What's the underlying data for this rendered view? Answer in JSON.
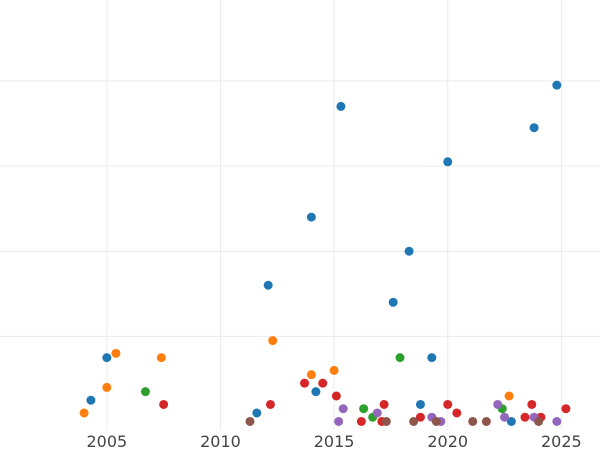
{
  "chart_data": {
    "type": "scatter",
    "title": "",
    "xlabel": "",
    "ylabel": "",
    "xlim": [
      2000.3,
      2026.7
    ],
    "ylim": [
      -1,
      100
    ],
    "x_ticks": [
      2005,
      2010,
      2015,
      2020,
      2025
    ],
    "y_grid_values": [
      21,
      41,
      61,
      81
    ],
    "grid": true,
    "legend": "none",
    "series": [
      {
        "color": "#1f77b4",
        "points": [
          [
            2004.3,
            6
          ],
          [
            2005.0,
            16
          ],
          [
            2011.6,
            3
          ],
          [
            2012.1,
            33
          ],
          [
            2014.0,
            49
          ],
          [
            2014.2,
            8
          ],
          [
            2015.3,
            75
          ],
          [
            2017.6,
            29
          ],
          [
            2018.3,
            41
          ],
          [
            2018.8,
            5
          ],
          [
            2019.3,
            16
          ],
          [
            2020.0,
            62
          ],
          [
            2022.8,
            1
          ],
          [
            2023.8,
            70
          ],
          [
            2024.8,
            80
          ]
        ]
      },
      {
        "color": "#ff7f0e",
        "points": [
          [
            2004.0,
            3
          ],
          [
            2005.0,
            9
          ],
          [
            2005.4,
            17
          ],
          [
            2007.4,
            16
          ],
          [
            2012.3,
            20
          ],
          [
            2014.0,
            12
          ],
          [
            2015.0,
            13
          ],
          [
            2022.7,
            7
          ]
        ]
      },
      {
        "color": "#2ca02c",
        "points": [
          [
            2006.7,
            8
          ],
          [
            2016.3,
            4
          ],
          [
            2016.7,
            2
          ],
          [
            2017.9,
            16
          ],
          [
            2022.4,
            4
          ]
        ]
      },
      {
        "color": "#d62728",
        "points": [
          [
            2007.5,
            5
          ],
          [
            2012.2,
            5
          ],
          [
            2013.7,
            10
          ],
          [
            2014.5,
            10
          ],
          [
            2015.1,
            7
          ],
          [
            2016.2,
            1
          ],
          [
            2017.1,
            1
          ],
          [
            2017.2,
            5
          ],
          [
            2018.8,
            2
          ],
          [
            2020.0,
            5
          ],
          [
            2020.4,
            3
          ],
          [
            2023.4,
            2
          ],
          [
            2023.7,
            5
          ],
          [
            2024.1,
            2
          ],
          [
            2025.2,
            4
          ]
        ]
      },
      {
        "color": "#9467bd",
        "points": [
          [
            2015.2,
            1
          ],
          [
            2015.4,
            4
          ],
          [
            2016.9,
            3
          ],
          [
            2019.3,
            2
          ],
          [
            2019.7,
            1
          ],
          [
            2022.2,
            5
          ],
          [
            2022.5,
            2
          ],
          [
            2023.8,
            2
          ],
          [
            2024.8,
            1
          ]
        ]
      },
      {
        "color": "#8c564b",
        "points": [
          [
            2011.3,
            1
          ],
          [
            2017.3,
            1
          ],
          [
            2018.5,
            1
          ],
          [
            2019.5,
            1
          ],
          [
            2021.1,
            1
          ],
          [
            2021.7,
            1
          ],
          [
            2024.0,
            1
          ]
        ]
      }
    ]
  }
}
